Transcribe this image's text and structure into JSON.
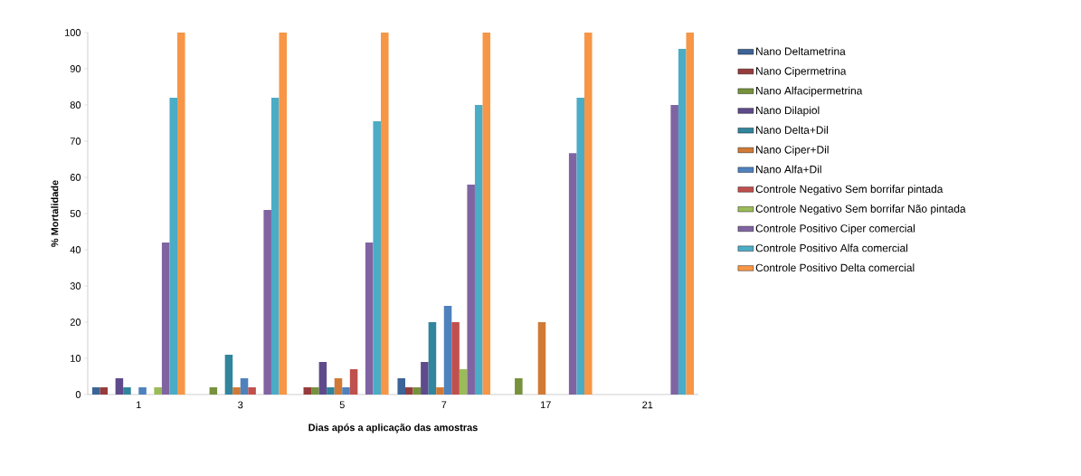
{
  "chart_data": {
    "type": "bar",
    "ylabel": "% Mortalidade",
    "xlabel": "Dias após a aplicação  das amostras",
    "categories": [
      "1",
      "3",
      "5",
      "7",
      "17",
      "21"
    ],
    "ylim": [
      0,
      100
    ],
    "yticks": [
      0,
      10,
      20,
      30,
      40,
      50,
      60,
      70,
      80,
      90,
      100
    ],
    "grid": false,
    "legend": "right",
    "series": [
      {
        "name": "Nano Deltametrina",
        "color": "#3c6496",
        "values": [
          2,
          0,
          0,
          4.5,
          0,
          0
        ]
      },
      {
        "name": "Nano Cipermetrina",
        "color": "#963c3c",
        "values": [
          2,
          0,
          2,
          2,
          0,
          0
        ]
      },
      {
        "name": "Nano Alfacipermetrina",
        "color": "#76923c",
        "values": [
          0,
          2,
          2,
          2,
          4.5,
          0
        ]
      },
      {
        "name": "Nano Dilapiol",
        "color": "#5f4b8b",
        "values": [
          4.5,
          0,
          9,
          9,
          0,
          0
        ]
      },
      {
        "name": "Nano Delta+Dil",
        "color": "#31859c",
        "values": [
          2,
          11,
          2,
          20,
          0,
          0
        ]
      },
      {
        "name": "Nano Ciper+Dil",
        "color": "#d07a36",
        "values": [
          0,
          2,
          4.5,
          2,
          20,
          0
        ]
      },
      {
        "name": "Nano Alfa+Dil",
        "color": "#4f81bd",
        "values": [
          2,
          4.5,
          2,
          24.5,
          0,
          0
        ]
      },
      {
        "name": "Controle Negativo Sem borrifar pintada",
        "color": "#c0504d",
        "values": [
          0,
          2,
          7,
          20,
          0,
          0
        ]
      },
      {
        "name": "Controle Negativo Sem borrifar Não pintada",
        "color": "#9bbb59",
        "values": [
          2,
          0,
          0,
          7,
          0,
          0
        ]
      },
      {
        "name": "Controle Positivo Ciper comercial",
        "color": "#8064a2",
        "values": [
          42,
          51,
          42,
          58,
          66.7,
          80
        ]
      },
      {
        "name": "Controle Positivo Alfa comercial",
        "color": "#4bacc6",
        "values": [
          82,
          82,
          75.5,
          80,
          82,
          95.5
        ]
      },
      {
        "name": "Controle Positivo Delta comercial",
        "color": "#f79646",
        "values": [
          100,
          100,
          100,
          100,
          100,
          100
        ]
      }
    ]
  }
}
